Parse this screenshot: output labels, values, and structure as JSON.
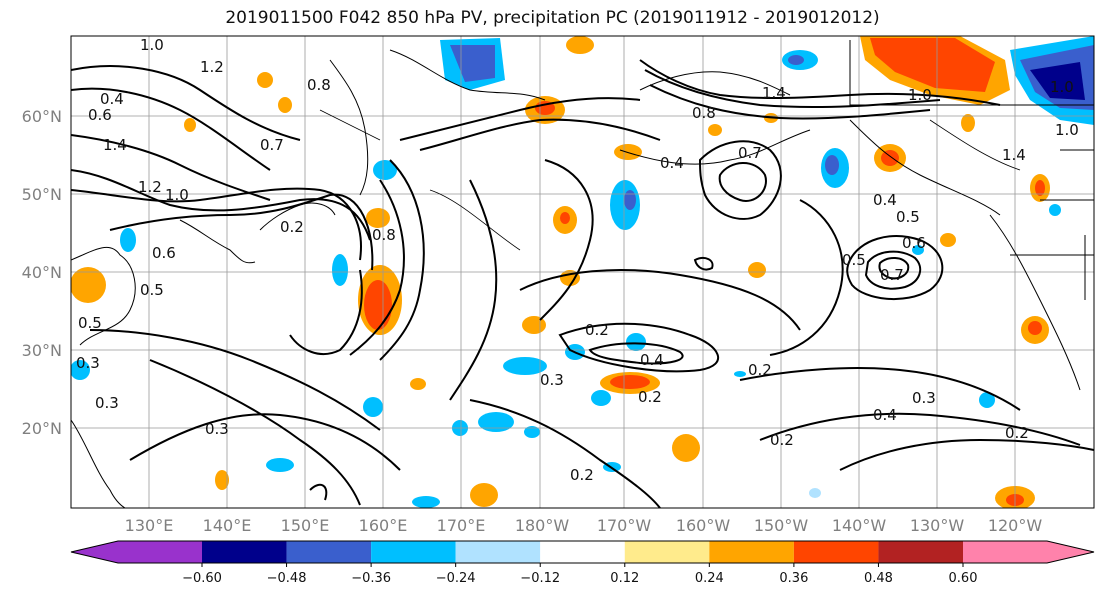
{
  "title": "2019011500 F042 850 hPa PV, precipitation PC (2019011912 - 2019012012)",
  "lat_labels": [
    "60°N",
    "50°N",
    "40°N",
    "30°N",
    "20°N"
  ],
  "lon_labels": [
    "130°E",
    "140°E",
    "150°E",
    "160°E",
    "170°E",
    "180°W",
    "170°W",
    "160°W",
    "150°W",
    "140°W",
    "130°W",
    "120°W"
  ],
  "colorbar": {
    "colors": [
      "#9932cc",
      "#00008b",
      "#3a5fcd",
      "#00bfff",
      "#b0e2ff",
      "#ffffff",
      "#ffeb8c",
      "#ffa500",
      "#ff4500",
      "#b22222",
      "#ff82ab"
    ],
    "tick_labels": [
      "−0.60",
      "−0.48",
      "−0.36",
      "−0.24",
      "−0.12",
      "0.12",
      "0.24",
      "0.36",
      "0.48",
      "0.60"
    ]
  },
  "contour_labels": [
    {
      "text": "1.0"
    },
    {
      "text": "1.2"
    },
    {
      "text": "0.4"
    },
    {
      "text": "0.6"
    },
    {
      "text": "1.4"
    },
    {
      "text": "1.2"
    },
    {
      "text": "1.0"
    },
    {
      "text": "0.8"
    },
    {
      "text": "0.7"
    },
    {
      "text": "0.2"
    },
    {
      "text": "0.8"
    },
    {
      "text": "0.6"
    },
    {
      "text": "0.5"
    },
    {
      "text": "0.5"
    },
    {
      "text": "0.3"
    },
    {
      "text": "0.3"
    },
    {
      "text": "0.3"
    },
    {
      "text": "0.2"
    },
    {
      "text": "0.3"
    },
    {
      "text": "0.4"
    },
    {
      "text": "0.2"
    },
    {
      "text": "0.2"
    },
    {
      "text": "0.2"
    },
    {
      "text": "0.8"
    },
    {
      "text": "0.4"
    },
    {
      "text": "0.7"
    },
    {
      "text": "1.4"
    },
    {
      "text": "1.0"
    },
    {
      "text": "0.4"
    },
    {
      "text": "0.5"
    },
    {
      "text": "0.6"
    },
    {
      "text": "0.5"
    },
    {
      "text": "0.7"
    },
    {
      "text": "0.4"
    },
    {
      "text": "0.3"
    },
    {
      "text": "0.2"
    },
    {
      "text": "0.2"
    },
    {
      "text": "1.4"
    },
    {
      "text": "1.0"
    },
    {
      "text": "1.0"
    }
  ]
}
